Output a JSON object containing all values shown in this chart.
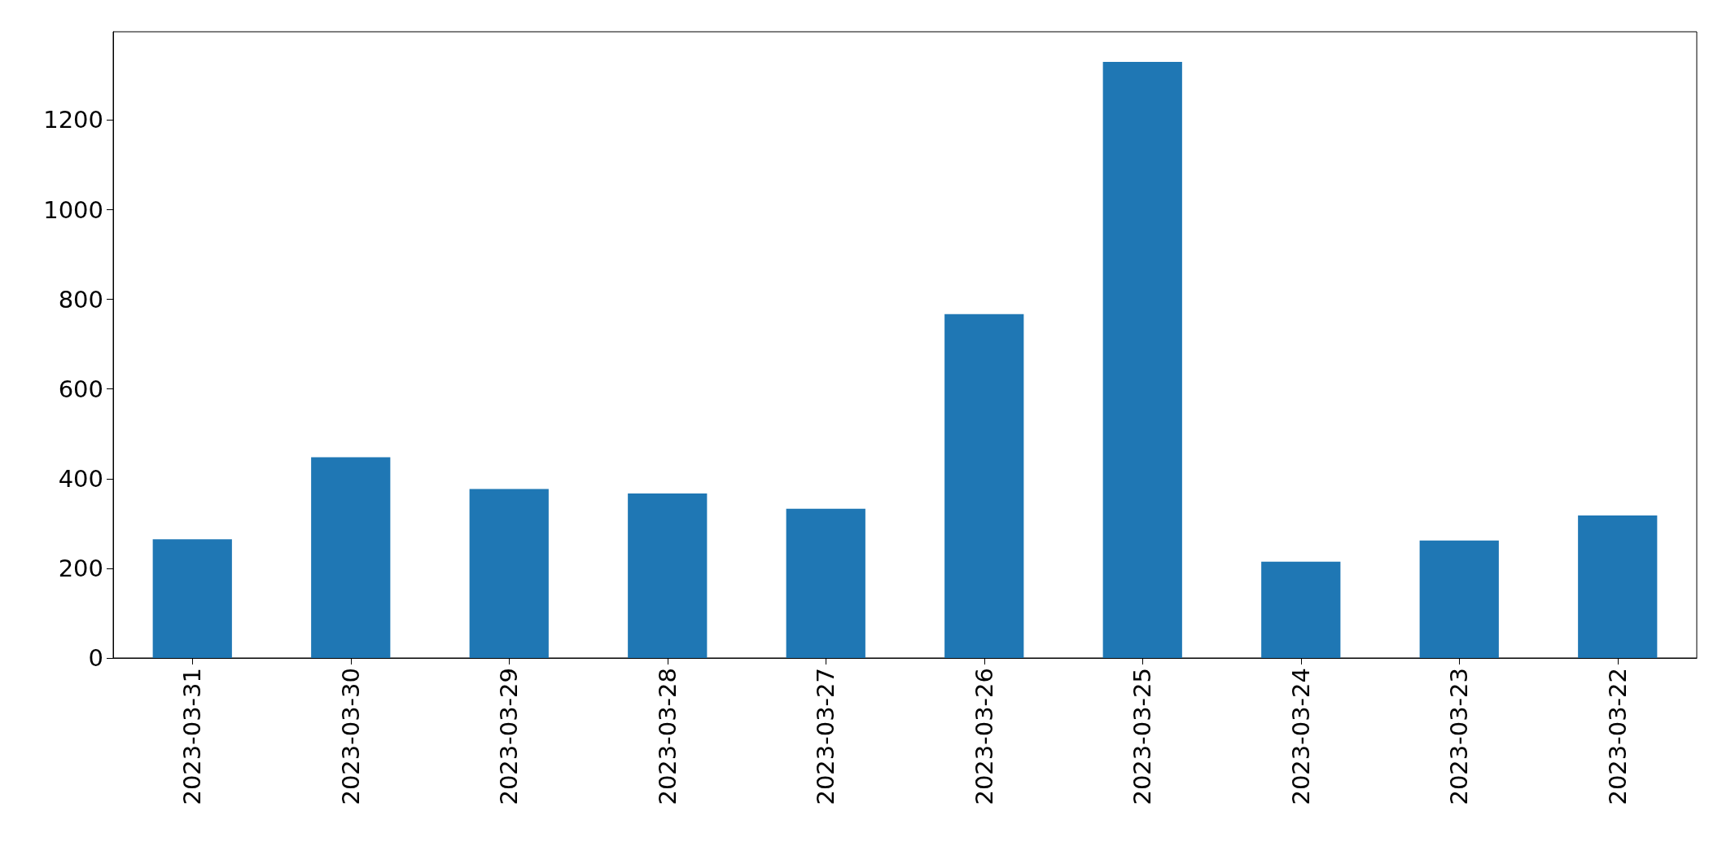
{
  "chart_data": {
    "type": "bar",
    "categories": [
      "2023-03-31",
      "2023-03-30",
      "2023-03-29",
      "2023-03-28",
      "2023-03-27",
      "2023-03-26",
      "2023-03-25",
      "2023-03-24",
      "2023-03-23",
      "2023-03-22"
    ],
    "values": [
      265,
      448,
      377,
      367,
      333,
      767,
      1330,
      215,
      262,
      318
    ],
    "color": "#1f77b4",
    "ylim": [
      0,
      1397
    ],
    "yticks": [
      0,
      200,
      400,
      600,
      800,
      1000,
      1200
    ],
    "grid": false
  }
}
